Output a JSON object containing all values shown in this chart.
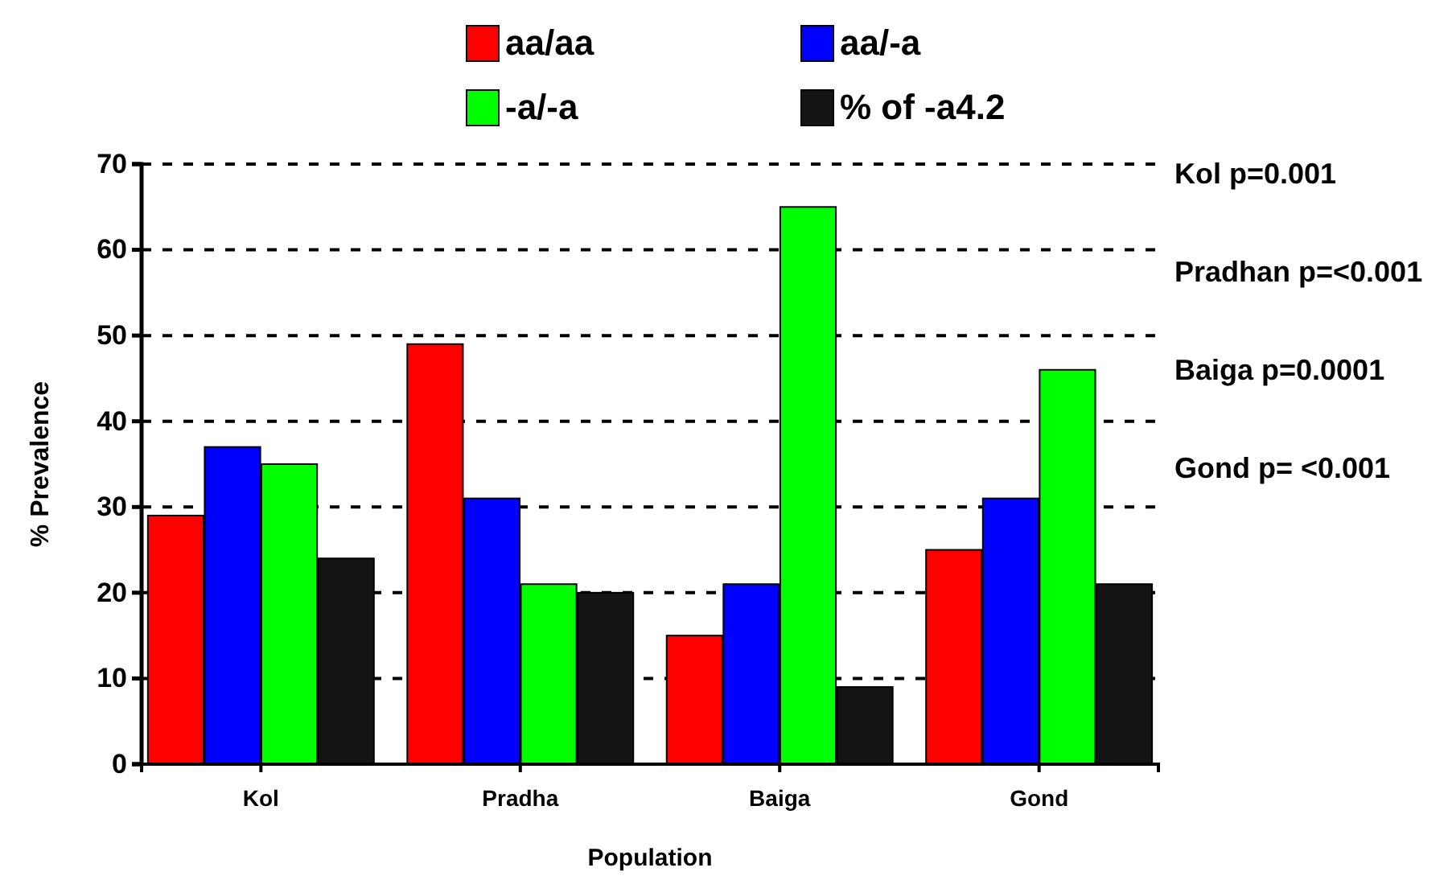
{
  "chart_data": {
    "type": "bar",
    "xlabel": "Population",
    "ylabel": "% Prevalence",
    "categories": [
      "Kol",
      "Pradha",
      "Baiga",
      "Gond"
    ],
    "series": [
      {
        "name": "aa/aa",
        "color": "#ff0000",
        "values": [
          29,
          49,
          15,
          25
        ]
      },
      {
        "name": "aa/-a",
        "color": "#0000ff",
        "values": [
          37,
          31,
          21,
          31
        ]
      },
      {
        "name": "-a/-a",
        "color": "#00ff00",
        "values": [
          35,
          21,
          65,
          46
        ]
      },
      {
        "name": "% of -a4.2",
        "color": "#141414",
        "values": [
          24,
          20,
          9,
          21
        ]
      }
    ],
    "ylim": [
      0,
      70
    ],
    "yticks": [
      0,
      10,
      20,
      30,
      40,
      50,
      60,
      70
    ],
    "grid": "y",
    "legend": "top",
    "annotations": [
      "Kol p=0.001",
      "Pradhan p=<0.001",
      "Baiga p=0.0001",
      "Gond p= <0.001"
    ]
  }
}
